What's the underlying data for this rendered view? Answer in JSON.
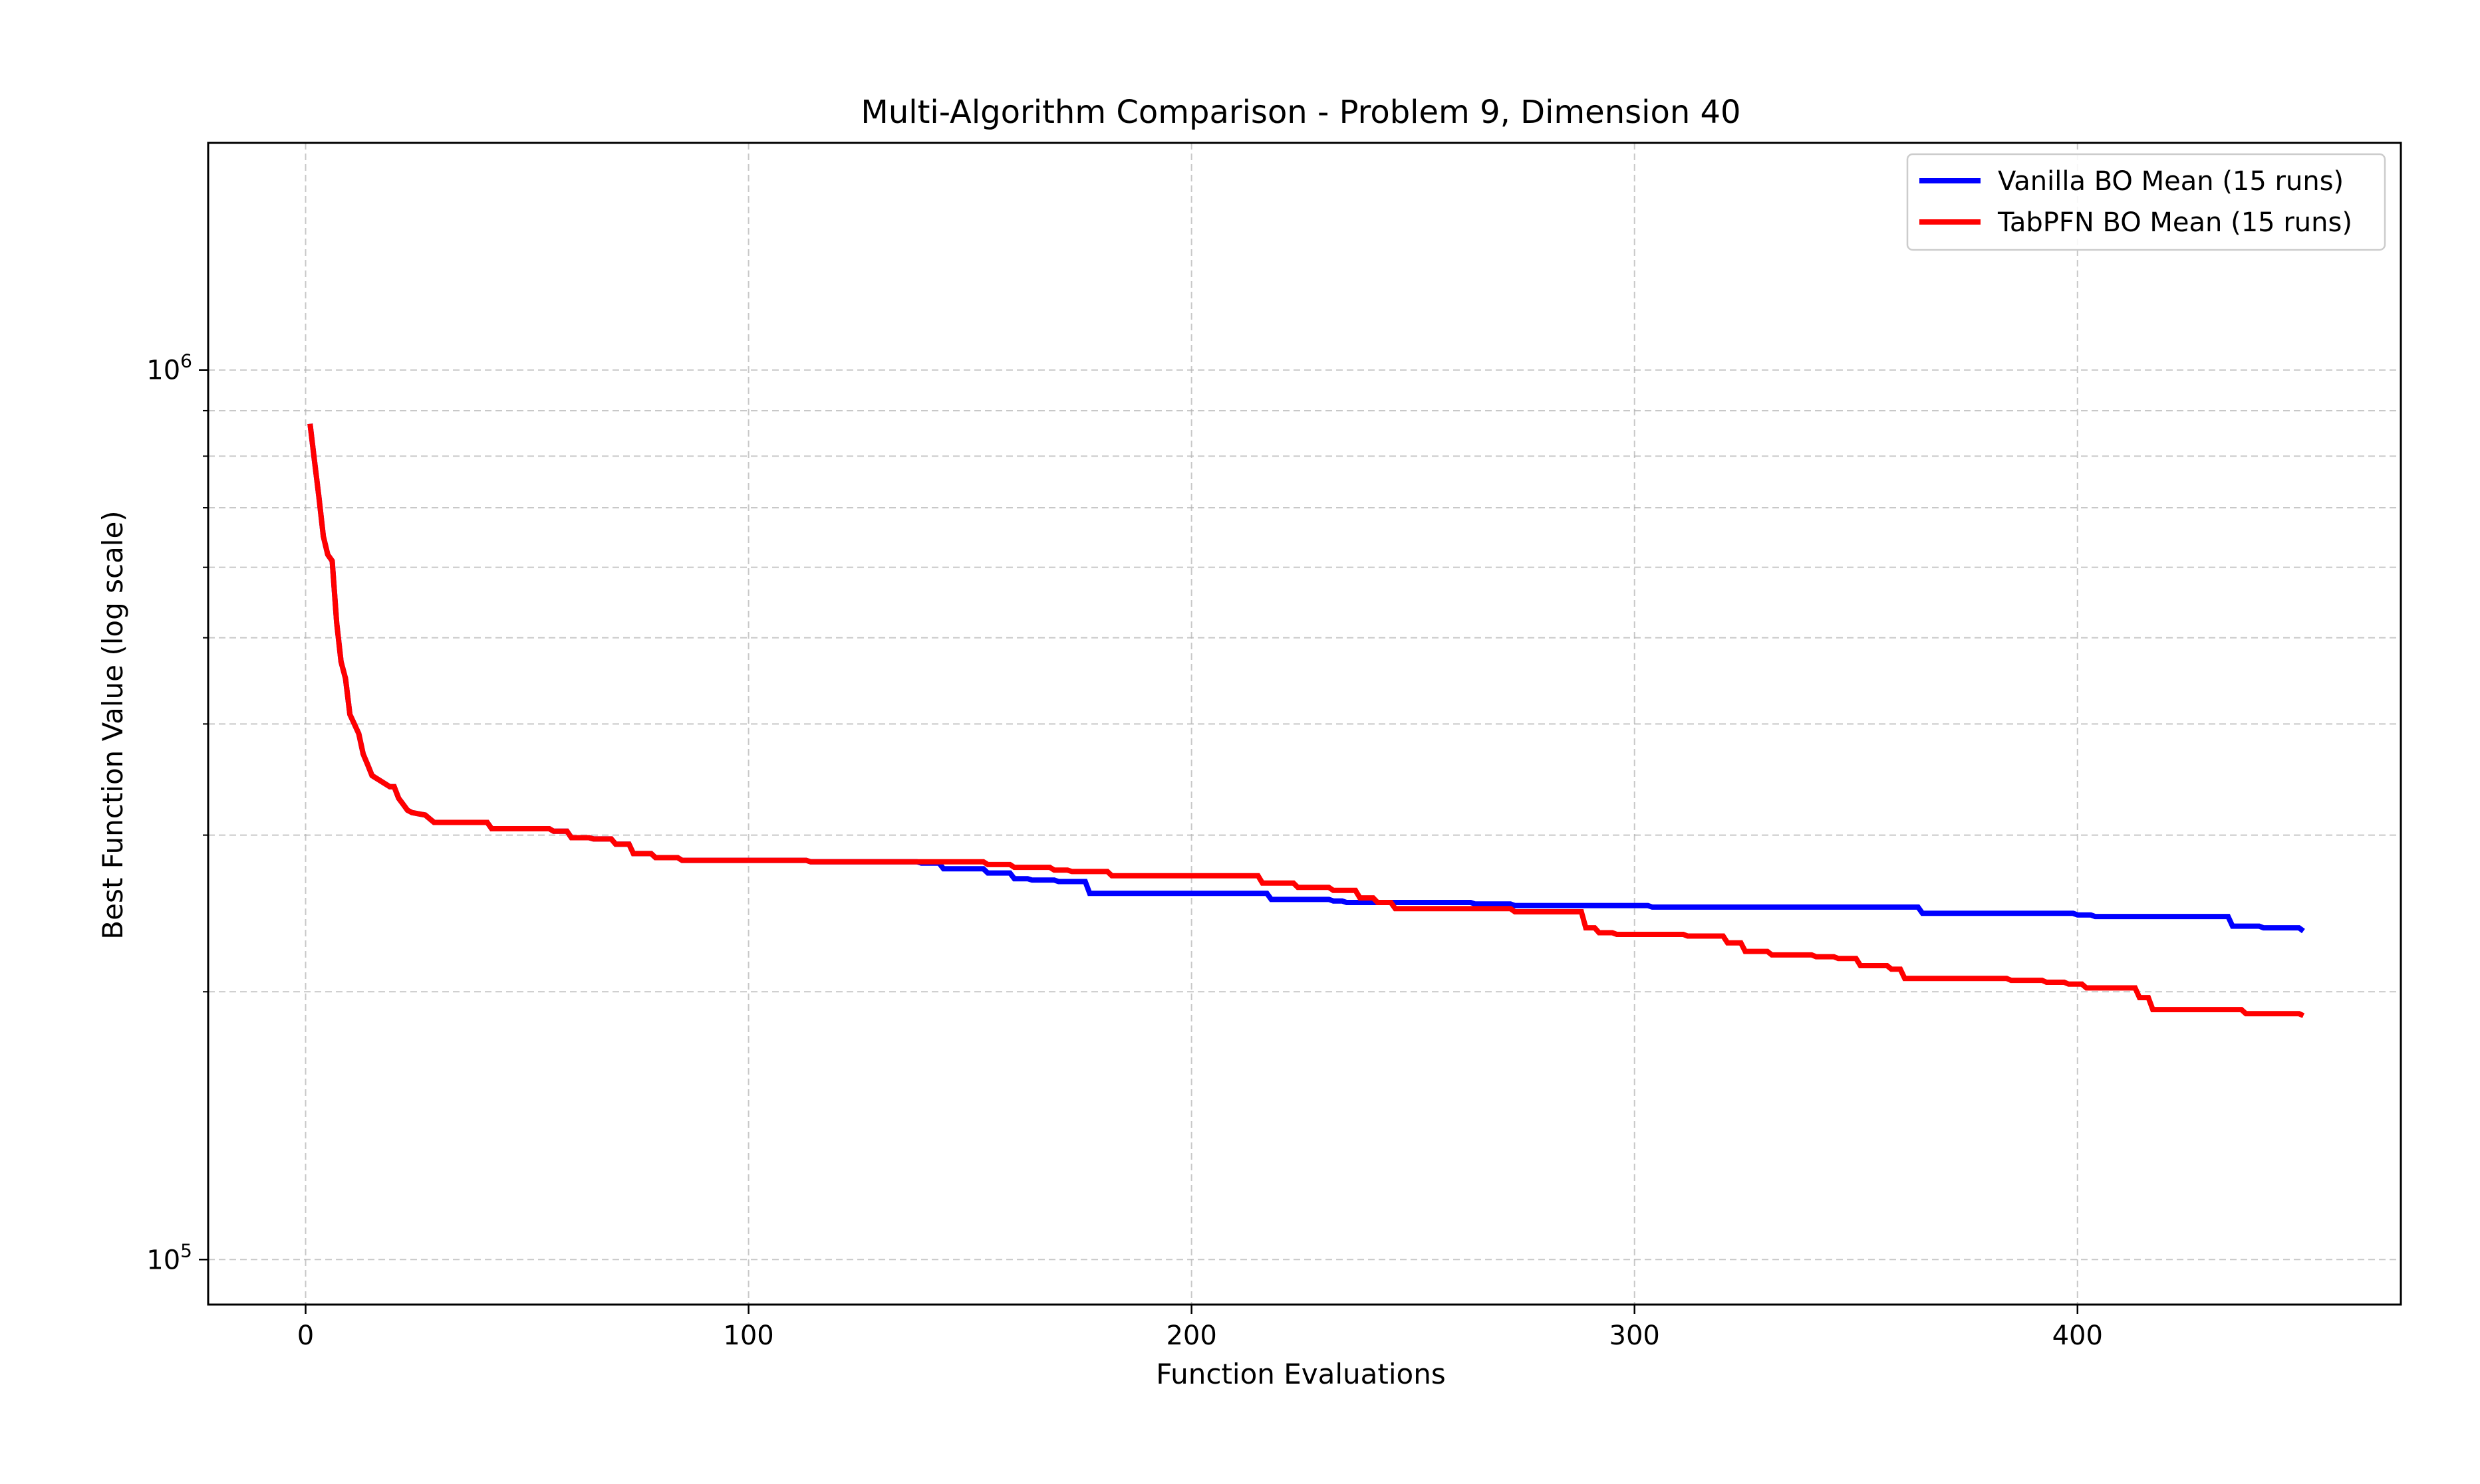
{
  "chart_data": {
    "type": "line",
    "title": "Multi-Algorithm Comparison - Problem 9, Dimension 40",
    "xlabel": "Function Evaluations",
    "ylabel": "Best Function Value (log scale)",
    "xlim": [
      -22,
      473
    ],
    "ylim": [
      89000,
      1800000
    ],
    "yscale": "log",
    "grid": true,
    "legend_position": "top-right",
    "x_ticks": [
      {
        "value": 0,
        "label": "0"
      },
      {
        "value": 100,
        "label": "100"
      },
      {
        "value": 200,
        "label": "200"
      },
      {
        "value": 300,
        "label": "300"
      },
      {
        "value": 400,
        "label": "400"
      }
    ],
    "y_ticks": [
      {
        "value": 100000,
        "base": "10",
        "exp": "5"
      },
      {
        "value": 1000000,
        "base": "10",
        "exp": "6"
      }
    ],
    "y_minor_ticks": [
      200000,
      300000,
      400000,
      500000,
      600000,
      700000,
      800000,
      900000
    ],
    "series": [
      {
        "name": "Vanilla BO Mean (15 runs)",
        "color": "#0000ff",
        "x": [
          1,
          2,
          3,
          4,
          5,
          6,
          7,
          8,
          9,
          10,
          11,
          12,
          13,
          14,
          15,
          19,
          20,
          21,
          22,
          23,
          24,
          27,
          28,
          29,
          41,
          42,
          43,
          55,
          56,
          59,
          60,
          64,
          65,
          69,
          70,
          73,
          74,
          78,
          79,
          84,
          85,
          113,
          114,
          138,
          139,
          143,
          144,
          153,
          154,
          159,
          160,
          163,
          164,
          169,
          170,
          176,
          177,
          217,
          218,
          231,
          232,
          234,
          235,
          263,
          264,
          272,
          273,
          303,
          304,
          364,
          365,
          399,
          400,
          403,
          404,
          434,
          435,
          441,
          442,
          450,
          451
        ],
        "y": [
          870000,
          790000,
          720000,
          650000,
          620000,
          610000,
          520000,
          470000,
          450000,
          410000,
          400000,
          390000,
          370000,
          360000,
          350000,
          340000,
          340000,
          330000,
          325000,
          320000,
          318000,
          316000,
          313000,
          310000,
          310000,
          305000,
          305000,
          305000,
          303000,
          303000,
          298000,
          298000,
          297000,
          297000,
          293000,
          293000,
          286000,
          286000,
          283000,
          283000,
          281000,
          281000,
          280000,
          280000,
          279000,
          279000,
          275000,
          275000,
          272000,
          272000,
          268000,
          268000,
          267000,
          267000,
          266000,
          266000,
          258000,
          258000,
          254000,
          254000,
          253000,
          253000,
          252000,
          252000,
          251000,
          251000,
          250000,
          250000,
          249000,
          249000,
          245000,
          245000,
          244000,
          244000,
          243000,
          243000,
          237000,
          237000,
          236000,
          236000,
          234000
        ]
      },
      {
        "name": "TabPFN BO Mean (15 runs)",
        "color": "#ff0000",
        "x": [
          1,
          2,
          3,
          4,
          5,
          6,
          7,
          8,
          9,
          10,
          11,
          12,
          13,
          14,
          15,
          19,
          20,
          21,
          22,
          23,
          24,
          27,
          28,
          29,
          41,
          42,
          43,
          55,
          56,
          59,
          60,
          64,
          65,
          69,
          70,
          73,
          74,
          78,
          79,
          84,
          85,
          113,
          114,
          153,
          154,
          159,
          160,
          168,
          169,
          172,
          173,
          181,
          182,
          215,
          216,
          223,
          224,
          231,
          232,
          237,
          238,
          241,
          242,
          245,
          246,
          272,
          273,
          288,
          289,
          291,
          292,
          295,
          296,
          311,
          312,
          320,
          321,
          324,
          325,
          330,
          331,
          340,
          341,
          345,
          346,
          350,
          351,
          357,
          358,
          360,
          361,
          384,
          385,
          392,
          393,
          397,
          398,
          401,
          402,
          413,
          414,
          416,
          417,
          437,
          438,
          450,
          451
        ],
        "y": [
          870000,
          790000,
          720000,
          650000,
          620000,
          610000,
          520000,
          470000,
          450000,
          410000,
          400000,
          390000,
          370000,
          360000,
          350000,
          340000,
          340000,
          330000,
          325000,
          320000,
          318000,
          316000,
          313000,
          310000,
          310000,
          305000,
          305000,
          305000,
          303000,
          303000,
          298000,
          298000,
          297000,
          297000,
          293000,
          293000,
          286000,
          286000,
          283000,
          283000,
          281000,
          281000,
          280000,
          280000,
          278000,
          278000,
          276000,
          276000,
          274000,
          274000,
          273000,
          273000,
          270000,
          270000,
          265000,
          265000,
          262000,
          262000,
          260000,
          260000,
          255000,
          255000,
          252000,
          252000,
          248000,
          248000,
          246000,
          246000,
          236000,
          236000,
          233000,
          233000,
          232000,
          232000,
          231000,
          231000,
          227000,
          227000,
          222000,
          222000,
          220000,
          220000,
          219000,
          219000,
          218000,
          218000,
          214000,
          214000,
          212000,
          212000,
          207000,
          207000,
          206000,
          206000,
          205000,
          205000,
          204000,
          204000,
          202000,
          202000,
          197000,
          197000,
          191000,
          191000,
          189000,
          189000,
          188000
        ]
      }
    ]
  }
}
